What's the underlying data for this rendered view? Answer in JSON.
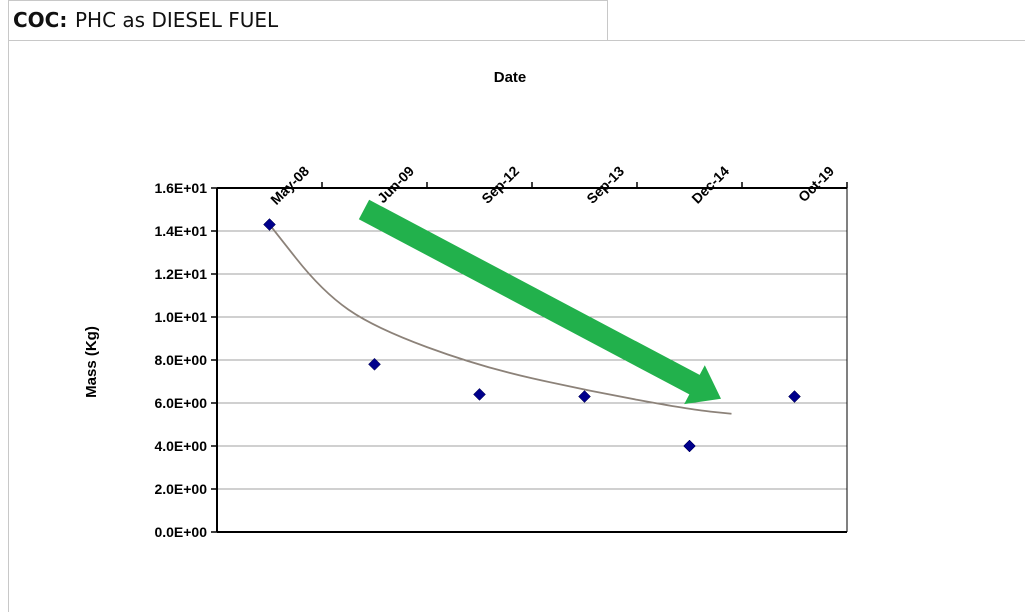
{
  "header": {
    "coc_label": "COC:",
    "coc_value": "PHC as DIESEL FUEL"
  },
  "chart_data": {
    "type": "scatter",
    "title": "",
    "xlabel": "Date",
    "ylabel": "Mass (Kg)",
    "categories": [
      "May-08",
      "Jun-09",
      "Sep-12",
      "Sep-13",
      "Dec-14",
      "Oct-19"
    ],
    "ylim": [
      0,
      16
    ],
    "y_ticks": [
      0,
      2,
      4,
      6,
      8,
      10,
      12,
      14,
      16
    ],
    "y_tick_labels": [
      "0.0E+00",
      "2.0E+00",
      "4.0E+00",
      "6.0E+00",
      "8.0E+00",
      "1.0E+01",
      "1.2E+01",
      "1.4E+01",
      "1.6E+01"
    ],
    "x_axis_position": "top",
    "grid": true,
    "legend": "none",
    "series": [
      {
        "values": [
          14.3,
          7.8,
          6.4,
          6.3,
          4.0,
          6.3
        ],
        "color": "#00008B",
        "marker": "diamond"
      }
    ],
    "trendline": {
      "type": "logarithmic",
      "color": "#8c8279",
      "points": [
        [
          1,
          14.3
        ],
        [
          1.5,
          11.2
        ],
        [
          2,
          9.5
        ],
        [
          3,
          7.7
        ],
        [
          4,
          6.6
        ],
        [
          5,
          5.7
        ],
        [
          5.4,
          5.5
        ]
      ]
    },
    "annotation": {
      "type": "arrow",
      "color": "#22b14c",
      "direction": "downward-trend",
      "from": [
        1.9,
        15.0
      ],
      "to": [
        5.3,
        6.2
      ]
    }
  }
}
